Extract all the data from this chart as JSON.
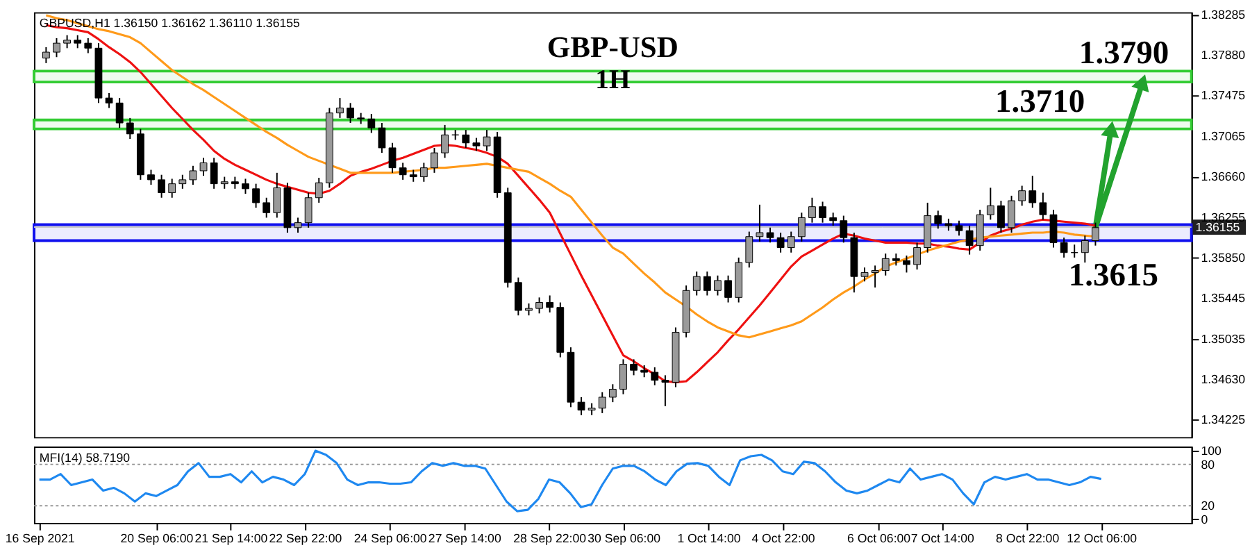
{
  "chart_data": [
    {
      "type": "candlestick",
      "title": "GBP-USD",
      "subtitle": "1H",
      "categories": [
        null,
        null,
        null,
        null,
        null,
        null,
        null,
        null,
        null,
        null,
        null,
        null,
        null,
        null,
        null,
        null,
        null,
        null,
        null,
        null,
        null,
        null,
        null,
        null,
        null,
        null,
        null,
        null,
        null,
        null,
        null,
        null,
        null,
        null,
        null,
        null,
        null,
        null,
        null,
        null,
        null,
        null,
        null,
        null,
        null,
        null,
        null,
        null,
        null,
        null,
        null,
        null,
        null,
        null,
        null,
        null,
        null,
        null,
        null,
        null,
        null,
        null,
        null,
        null,
        null,
        null,
        null,
        null,
        null,
        null,
        null,
        null,
        null,
        null,
        null,
        null,
        null,
        null,
        null,
        null,
        null,
        null,
        null,
        null,
        null,
        null,
        null,
        null,
        null,
        null,
        null,
        null,
        null,
        null,
        null,
        null,
        null,
        null,
        null,
        null,
        null
      ],
      "ohlc": [
        [
          1.3785,
          1.3796,
          1.378,
          1.3791
        ],
        [
          1.3791,
          1.3805,
          1.3786,
          1.38
        ],
        [
          1.38,
          1.3808,
          1.3795,
          1.3803
        ],
        [
          1.3803,
          1.3808,
          1.3795,
          1.38
        ],
        [
          1.38,
          1.3805,
          1.379,
          1.3795
        ],
        [
          1.3795,
          1.38,
          1.374,
          1.3745
        ],
        [
          1.3745,
          1.375,
          1.3735,
          1.374
        ],
        [
          1.374,
          1.3745,
          1.3715,
          1.372
        ],
        [
          1.372,
          1.3725,
          1.3704,
          1.3709
        ],
        [
          1.3709,
          1.3714,
          1.3663,
          1.3668
        ],
        [
          1.3668,
          1.3673,
          1.3658,
          1.3663
        ],
        [
          1.3663,
          1.3668,
          1.3645,
          1.365
        ],
        [
          1.365,
          1.3664,
          1.3645,
          1.3659
        ],
        [
          1.3659,
          1.3668,
          1.3654,
          1.3663
        ],
        [
          1.3663,
          1.3677,
          1.3658,
          1.3672
        ],
        [
          1.3672,
          1.3685,
          1.3667,
          1.368
        ],
        [
          1.368,
          1.3685,
          1.3654,
          1.3659
        ],
        [
          1.3659,
          1.3666,
          1.3654,
          1.3661
        ],
        [
          1.3661,
          1.3666,
          1.3654,
          1.3659
        ],
        [
          1.3659,
          1.3664,
          1.3649,
          1.3654
        ],
        [
          1.3654,
          1.3659,
          1.3635,
          1.364
        ],
        [
          1.364,
          1.3645,
          1.3625,
          1.363
        ],
        [
          1.363,
          1.367,
          1.3625,
          1.3655
        ],
        [
          1.3655,
          1.366,
          1.361,
          1.3615
        ],
        [
          1.3615,
          1.3625,
          1.361,
          1.362
        ],
        [
          1.362,
          1.365,
          1.3615,
          1.3645
        ],
        [
          1.3645,
          1.3665,
          1.364,
          1.366
        ],
        [
          1.366,
          1.3735,
          1.3655,
          1.373
        ],
        [
          1.373,
          1.3745,
          1.3725,
          1.3735
        ],
        [
          1.3735,
          1.374,
          1.372,
          1.3725
        ],
        [
          1.3725,
          1.373,
          1.3719,
          1.3724
        ],
        [
          1.3724,
          1.3729,
          1.371,
          1.3715
        ],
        [
          1.3715,
          1.372,
          1.369,
          1.3695
        ],
        [
          1.3695,
          1.37,
          1.367,
          1.3675
        ],
        [
          1.3675,
          1.368,
          1.3663,
          1.3668
        ],
        [
          1.3668,
          1.3673,
          1.3661,
          1.3666
        ],
        [
          1.3666,
          1.368,
          1.3661,
          1.3675
        ],
        [
          1.3675,
          1.3695,
          1.367,
          1.369
        ],
        [
          1.369,
          1.3718,
          1.3685,
          1.3708
        ],
        [
          1.3708,
          1.3713,
          1.3703,
          1.3708
        ],
        [
          1.3708,
          1.3713,
          1.3695,
          1.37
        ],
        [
          1.37,
          1.3705,
          1.3692,
          1.3697
        ],
        [
          1.3697,
          1.3713,
          1.3692,
          1.3706
        ],
        [
          1.3706,
          1.3711,
          1.3645,
          1.365
        ],
        [
          1.365,
          1.3655,
          1.3555,
          1.356
        ],
        [
          1.356,
          1.3565,
          1.3527,
          1.3532
        ],
        [
          1.3532,
          1.3539,
          1.3527,
          1.3534
        ],
        [
          1.3534,
          1.3545,
          1.3529,
          1.354
        ],
        [
          1.354,
          1.3547,
          1.353,
          1.3535
        ],
        [
          1.3535,
          1.354,
          1.3485,
          1.349
        ],
        [
          1.349,
          1.3495,
          1.3435,
          1.344
        ],
        [
          1.344,
          1.3445,
          1.3427,
          1.3432
        ],
        [
          1.3432,
          1.3439,
          1.3427,
          1.3434
        ],
        [
          1.3434,
          1.345,
          1.3429,
          1.3445
        ],
        [
          1.3445,
          1.3458,
          1.344,
          1.3453
        ],
        [
          1.3453,
          1.3483,
          1.3448,
          1.3478
        ],
        [
          1.3478,
          1.3483,
          1.3467,
          1.3472
        ],
        [
          1.3472,
          1.3477,
          1.3465,
          1.347
        ],
        [
          1.347,
          1.3475,
          1.3457,
          1.3462
        ],
        [
          1.3462,
          1.3467,
          1.3436,
          1.346
        ],
        [
          1.346,
          1.3515,
          1.3455,
          1.351
        ],
        [
          1.351,
          1.3557,
          1.3505,
          1.3552
        ],
        [
          1.3552,
          1.3571,
          1.3547,
          1.3566
        ],
        [
          1.3566,
          1.3571,
          1.3547,
          1.3552
        ],
        [
          1.3552,
          1.3567,
          1.3547,
          1.3562
        ],
        [
          1.3562,
          1.3567,
          1.354,
          1.3545
        ],
        [
          1.3545,
          1.3585,
          1.354,
          1.358
        ],
        [
          1.358,
          1.3611,
          1.3575,
          1.3606
        ],
        [
          1.3606,
          1.3638,
          1.3601,
          1.361
        ],
        [
          1.361,
          1.3615,
          1.36,
          1.3605
        ],
        [
          1.3605,
          1.361,
          1.359,
          1.3595
        ],
        [
          1.3595,
          1.3611,
          1.359,
          1.3606
        ],
        [
          1.3606,
          1.363,
          1.3601,
          1.3625
        ],
        [
          1.3625,
          1.3645,
          1.362,
          1.3636
        ],
        [
          1.3636,
          1.3641,
          1.362,
          1.3625
        ],
        [
          1.3625,
          1.363,
          1.3617,
          1.3622
        ],
        [
          1.3622,
          1.3627,
          1.36,
          1.3605
        ],
        [
          1.3605,
          1.361,
          1.355,
          1.3566
        ],
        [
          1.3566,
          1.3575,
          1.3561,
          1.357
        ],
        [
          1.357,
          1.3577,
          1.3555,
          1.3572
        ],
        [
          1.3572,
          1.3589,
          1.3567,
          1.3584
        ],
        [
          1.3584,
          1.3589,
          1.3577,
          1.3582
        ],
        [
          1.3582,
          1.3587,
          1.357,
          1.3578
        ],
        [
          1.3578,
          1.36,
          1.3573,
          1.3595
        ],
        [
          1.3595,
          1.364,
          1.359,
          1.3627
        ],
        [
          1.3627,
          1.3632,
          1.3614,
          1.3619
        ],
        [
          1.3619,
          1.3624,
          1.3612,
          1.3617
        ],
        [
          1.3617,
          1.3622,
          1.3607,
          1.3612
        ],
        [
          1.3612,
          1.3617,
          1.3588,
          1.3597
        ],
        [
          1.3597,
          1.3633,
          1.3592,
          1.3628
        ],
        [
          1.3628,
          1.3655,
          1.3623,
          1.3637
        ],
        [
          1.3637,
          1.3642,
          1.361,
          1.3615
        ],
        [
          1.3615,
          1.3647,
          1.361,
          1.3642
        ],
        [
          1.3642,
          1.3657,
          1.3637,
          1.3652
        ],
        [
          1.3652,
          1.3667,
          1.3635,
          1.364
        ],
        [
          1.364,
          1.365,
          1.3623,
          1.3628
        ],
        [
          1.3628,
          1.3633,
          1.3595,
          1.36
        ],
        [
          1.36,
          1.3605,
          1.3585,
          1.359
        ],
        [
          1.359,
          1.3598,
          1.3585,
          1.359
        ],
        [
          1.359,
          1.3607,
          1.358,
          1.3602
        ],
        [
          1.3602,
          1.362,
          1.3597,
          1.3615
        ]
      ],
      "series": [
        {
          "type": "line",
          "color": "#ee1111",
          "values": [
            1.3818,
            1.3816,
            1.3815,
            1.3813,
            1.3811,
            1.3804,
            1.3796,
            1.3789,
            1.3781,
            1.3771,
            1.3759,
            1.3747,
            1.3735,
            1.3724,
            1.3713,
            1.3703,
            1.3692,
            1.3684,
            1.3678,
            1.3673,
            1.3668,
            1.3663,
            1.3659,
            1.3656,
            1.3653,
            1.365,
            1.3649,
            1.3652,
            1.3659,
            1.3667,
            1.3671,
            1.3674,
            1.3678,
            1.3682,
            1.3685,
            1.3689,
            1.3693,
            1.3697,
            1.3698,
            1.3697,
            1.3695,
            1.3693,
            1.369,
            1.3686,
            1.3679,
            1.3667,
            1.3655,
            1.3643,
            1.363,
            1.3609,
            1.3588,
            1.3567,
            1.3547,
            1.3527,
            1.3507,
            1.3487,
            1.3481,
            1.3474,
            1.3468,
            1.3461,
            1.346,
            1.3461,
            1.347,
            1.348,
            1.349,
            1.3502,
            1.3513,
            1.3525,
            1.3537,
            1.355,
            1.3563,
            1.3576,
            1.3586,
            1.3592,
            1.3598,
            1.3604,
            1.3609,
            1.3607,
            1.3604,
            1.3602,
            1.36,
            1.36,
            1.36,
            1.3599,
            1.3599,
            1.3597,
            1.3596,
            1.3594,
            1.3593,
            1.36,
            1.3607,
            1.3611,
            1.3614,
            1.3618,
            1.3621,
            1.3623,
            1.3622,
            1.3621,
            1.362,
            1.3619,
            1.3617
          ]
        },
        {
          "type": "line",
          "color": "#ff9a1a",
          "values": [
            1.3828,
            1.3825,
            1.3823,
            1.382,
            1.3817,
            1.3814,
            1.3812,
            1.3809,
            1.3806,
            1.38,
            1.3791,
            1.3782,
            1.3773,
            1.3766,
            1.3759,
            1.3753,
            1.3746,
            1.3739,
            1.3732,
            1.3725,
            1.3718,
            1.3711,
            1.3705,
            1.3698,
            1.3692,
            1.3686,
            1.3682,
            1.3678,
            1.3674,
            1.367,
            1.367,
            1.367,
            1.367,
            1.367,
            1.3671,
            1.3672,
            1.3673,
            1.3675,
            1.3675,
            1.3676,
            1.3677,
            1.3678,
            1.3679,
            1.3677,
            1.3675,
            1.3673,
            1.3671,
            1.3665,
            1.3659,
            1.3652,
            1.3646,
            1.3633,
            1.362,
            1.3607,
            1.3595,
            1.3589,
            1.3579,
            1.3569,
            1.356,
            1.355,
            1.3543,
            1.3536,
            1.3528,
            1.3521,
            1.3515,
            1.3511,
            1.3507,
            1.3505,
            1.3508,
            1.3511,
            1.3514,
            1.3517,
            1.3521,
            1.3528,
            1.3535,
            1.3543,
            1.355,
            1.3556,
            1.3563,
            1.3569,
            1.3576,
            1.358,
            1.3584,
            1.3588,
            1.3592,
            1.3595,
            1.3598,
            1.3601,
            1.3603,
            1.3605,
            1.3606,
            1.3607,
            1.3608,
            1.3609,
            1.361,
            1.361,
            1.3611,
            1.361,
            1.3608,
            1.3607,
            1.3606
          ]
        }
      ],
      "bands": [
        {
          "axis": "y",
          "from": 1.3761,
          "to": 1.3772,
          "color": "#33cc33",
          "label": "1.3790"
        },
        {
          "axis": "y",
          "from": 1.3714,
          "to": 1.3723,
          "color": "#33cc33",
          "label": "1.3710"
        },
        {
          "axis": "y",
          "from": 1.3602,
          "to": 1.3618,
          "color": "#1010ee",
          "label": "1.3615"
        }
      ],
      "ref_lines": [
        {
          "axis": "y",
          "value": 1.36155,
          "label": "1.36155",
          "color": "#c8c8c8"
        }
      ],
      "annotations": [
        "GBPUSD,H1  1.36150 1.36162 1.36110 1.36155"
      ],
      "ylim": [
        1.3405,
        1.3831
      ],
      "tick_labels": "y",
      "yticks": [
        {
          "value": 1.38285,
          "label": "1.38285"
        },
        {
          "value": 1.3788,
          "label": "1.37880"
        },
        {
          "value": 1.37475,
          "label": "1.37475"
        },
        {
          "value": 1.37065,
          "label": "1.37065"
        },
        {
          "value": 1.3666,
          "label": "1.36660"
        },
        {
          "value": 1.36255,
          "label": "1.36255"
        },
        {
          "value": 1.3585,
          "label": "1.35850"
        },
        {
          "value": 1.35445,
          "label": "1.35445"
        },
        {
          "value": 1.35035,
          "label": "1.35035"
        },
        {
          "value": 1.3463,
          "label": "1.34630"
        },
        {
          "value": 1.34225,
          "label": "1.34225"
        }
      ],
      "grid": false
    },
    {
      "type": "line",
      "categories": [
        "16 Sep 2021",
        null,
        null,
        null,
        null,
        null,
        null,
        null,
        null,
        null,
        null,
        "20 Sep 06:00",
        null,
        null,
        null,
        null,
        null,
        null,
        "21 Sep 14:00",
        null,
        null,
        null,
        null,
        null,
        null,
        "22 Sep 22:00",
        null,
        null,
        null,
        null,
        null,
        null,
        null,
        "24 Sep 06:00",
        null,
        null,
        null,
        null,
        null,
        null,
        "27 Sep 14:00",
        null,
        null,
        null,
        null,
        null,
        null,
        null,
        "28 Sep 22:00",
        null,
        null,
        null,
        null,
        null,
        null,
        "30 Sep 06:00",
        null,
        null,
        null,
        null,
        null,
        null,
        null,
        "1 Oct 14:00",
        null,
        null,
        null,
        null,
        null,
        null,
        "4 Oct 22:00",
        null,
        null,
        null,
        null,
        null,
        null,
        null,
        null,
        "6 Oct 06:00",
        null,
        null,
        null,
        null,
        null,
        "7 Oct 14:00",
        null,
        null,
        null,
        null,
        null,
        null,
        null,
        "8 Oct 22:00",
        null,
        null,
        null,
        null,
        null,
        null,
        "12 Oct 06:00",
        null,
        null,
        null,
        null,
        null,
        null,
        null,
        null
      ],
      "series": [
        {
          "color": "#1e88f0",
          "values": [
            58,
            58,
            66,
            50,
            54,
            58,
            42,
            46,
            38,
            26,
            38,
            34,
            42,
            50,
            70,
            82,
            62,
            62,
            66,
            54,
            70,
            54,
            62,
            58,
            50,
            66,
            100,
            94,
            82,
            58,
            50,
            54,
            54,
            52,
            52,
            54,
            70,
            82,
            78,
            82,
            78,
            78,
            74,
            50,
            26,
            12,
            14,
            30,
            58,
            54,
            38,
            18,
            22,
            50,
            74,
            78,
            78,
            70,
            58,
            50,
            70,
            81,
            82,
            78,
            62,
            50,
            86,
            92,
            94,
            86,
            70,
            66,
            84,
            82,
            70,
            54,
            42,
            38,
            42,
            50,
            58,
            54,
            74,
            58,
            62,
            66,
            58,
            38,
            22,
            54,
            62,
            58,
            62,
            66,
            58,
            58,
            54,
            50,
            54,
            62,
            59,
            null,
            null,
            null,
            null,
            null,
            null,
            null,
            null
          ]
        }
      ],
      "ref_lines": [
        {
          "axis": "y",
          "value": 80,
          "color": "#999999",
          "line_style": "dotted"
        },
        {
          "axis": "y",
          "value": 20,
          "color": "#999999",
          "line_style": "dotted"
        }
      ],
      "annotations": [
        "MFI(14) 58.7190"
      ],
      "ylim": [
        -5,
        106
      ],
      "yticks": [
        0,
        20,
        80,
        100
      ],
      "grid": false
    }
  ]
}
